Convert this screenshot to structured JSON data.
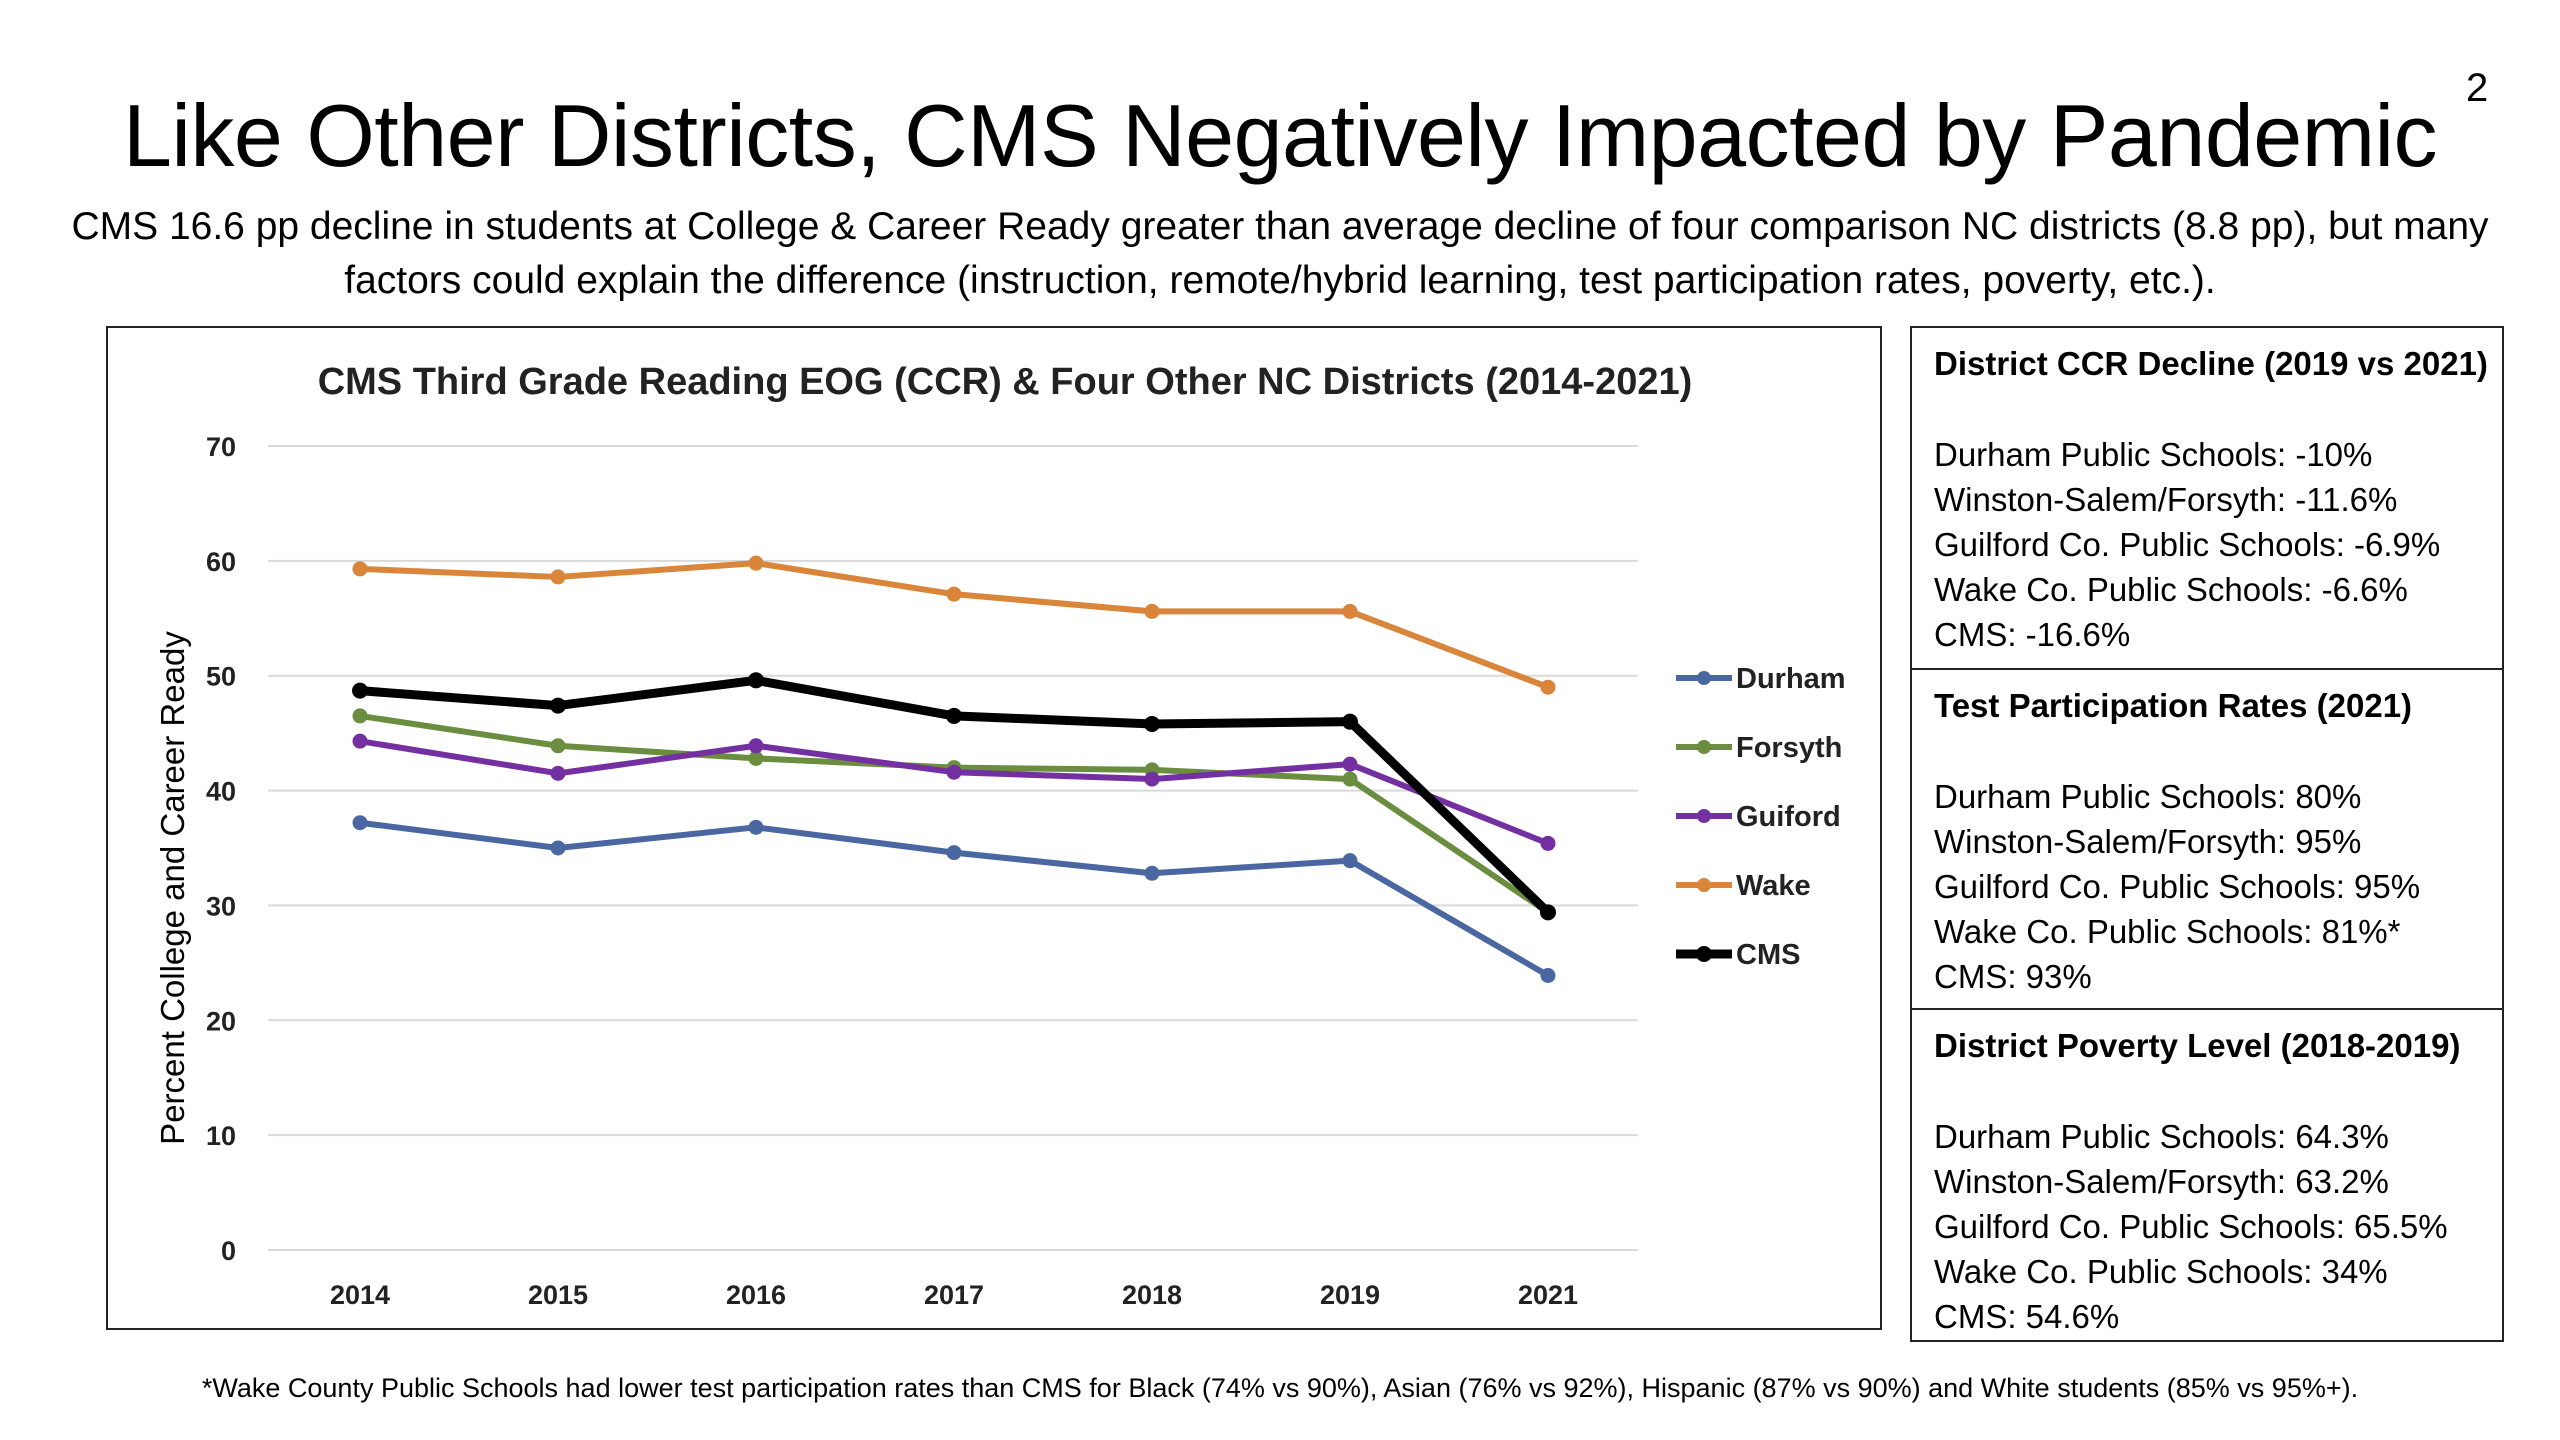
{
  "slide": {
    "number": "2",
    "title": "Like Other Districts, CMS Negatively Impacted by Pandemic",
    "subtitle": "CMS 16.6 pp decline in students at College & Career Ready greater than average decline of four comparison NC districts (8.8 pp), but many factors could explain the difference (instruction, remote/hybrid learning, test participation rates, poverty, etc.).",
    "footnote": "*Wake County Public Schools had lower test participation rates than CMS for Black (74% vs 90%), Asian (76% vs 92%), Hispanic (87% vs 90%) and White students (85% vs 95%+)."
  },
  "chart_data": {
    "type": "line",
    "title": "CMS Third Grade Reading EOG (CCR) & Four Other NC Districts (2014-2021)",
    "ylabel": "Percent College and Career Ready",
    "xlabel": "",
    "categories": [
      "2014",
      "2015",
      "2016",
      "2017",
      "2018",
      "2019",
      "2021"
    ],
    "ylim": [
      0,
      70
    ],
    "yticks": [
      0,
      10,
      20,
      30,
      40,
      50,
      60,
      70
    ],
    "grid": "horizontal",
    "legend_position": "right",
    "series": [
      {
        "name": "Durham",
        "color": "#4a67a1",
        "values": [
          37.2,
          35.0,
          36.8,
          34.6,
          32.8,
          33.9,
          23.9
        ]
      },
      {
        "name": "Forsyth",
        "color": "#6a8d3f",
        "values": [
          46.5,
          43.9,
          42.8,
          42.0,
          41.8,
          41.0,
          29.4
        ]
      },
      {
        "name": "Guiford",
        "color": "#7430a0",
        "values": [
          44.3,
          41.5,
          43.9,
          41.6,
          41.0,
          42.3,
          35.4
        ]
      },
      {
        "name": "Wake",
        "color": "#d9853a",
        "values": [
          59.3,
          58.6,
          59.8,
          57.1,
          55.6,
          55.6,
          49.0
        ]
      },
      {
        "name": "CMS",
        "color": "#000000",
        "values": [
          48.7,
          47.4,
          49.6,
          46.5,
          45.8,
          46.0,
          29.4
        ]
      }
    ]
  },
  "panel": [
    {
      "heading": "District CCR Decline (2019 vs 2021)",
      "lines": [
        "Durham Public Schools: -10%",
        "Winston-Salem/Forsyth: -11.6%",
        "Guilford Co. Public Schools: -6.9%",
        "Wake Co. Public Schools: -6.6%",
        "CMS: -16.6%"
      ]
    },
    {
      "heading": "Test Participation Rates (2021)",
      "lines": [
        "Durham Public Schools: 80%",
        "Winston-Salem/Forsyth: 95%",
        "Guilford Co. Public Schools: 95%",
        "Wake Co. Public Schools: 81%*",
        "CMS: 93%"
      ]
    },
    {
      "heading": "District Poverty Level (2018-2019)",
      "lines": [
        "Durham Public Schools: 64.3%",
        "Winston-Salem/Forsyth: 63.2%",
        "Guilford Co. Public Schools: 65.5%",
        "Wake Co. Public Schools: 34%",
        "CMS: 54.6%"
      ]
    }
  ]
}
